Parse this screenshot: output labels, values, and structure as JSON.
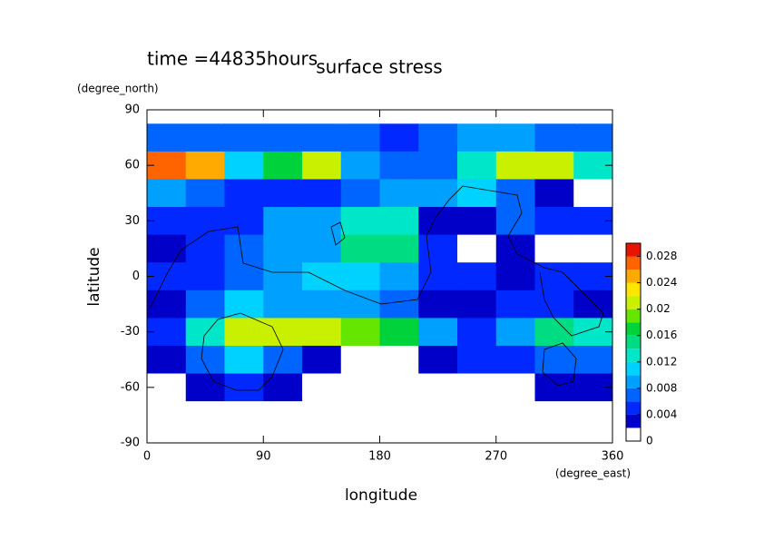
{
  "chart_data": {
    "type": "contour",
    "title": "surface stress",
    "subtitle": "time =44835hours",
    "xlabel": "longitude",
    "xunit": "(degree_east)",
    "ylabel": "latitude",
    "yunit": "(degree_north)",
    "xlim": [
      0,
      360
    ],
    "ylim": [
      -90,
      90
    ],
    "xticks": [
      0,
      90,
      180,
      270,
      360
    ],
    "yticks": [
      -90,
      -60,
      -30,
      0,
      30,
      60,
      90
    ],
    "x": [
      15,
      45,
      75,
      105,
      135,
      165,
      195,
      225,
      255,
      285,
      315,
      345
    ],
    "y": [
      75,
      60,
      45,
      30,
      15,
      0,
      -15,
      -30,
      -45,
      -60,
      -75
    ],
    "z": [
      [
        0.007,
        0.007,
        0.006,
        0.006,
        0.006,
        0.006,
        0.005,
        0.007,
        0.008,
        0.008,
        0.006,
        0.007
      ],
      [
        0.026,
        0.024,
        0.01,
        0.016,
        0.02,
        0.008,
        0.006,
        0.006,
        0.012,
        0.02,
        0.02,
        0.012
      ],
      [
        0.008,
        0.007,
        0.005,
        0.004,
        0.004,
        0.006,
        0.008,
        0.008,
        0.01,
        0.006,
        0.002,
        0
      ],
      [
        0.005,
        0.005,
        0.004,
        0.008,
        0.008,
        0.012,
        0.012,
        0.002,
        0.002,
        0.006,
        0.005,
        0.004
      ],
      [
        0.002,
        0.005,
        0.006,
        0.008,
        0.008,
        0.014,
        0.014,
        0.004,
        0,
        0.002,
        0,
        0
      ],
      [
        0.005,
        0.005,
        0.006,
        0.009,
        0.01,
        0.011,
        0.009,
        0.005,
        0.004,
        0.003,
        0.004,
        0.005
      ],
      [
        0.003,
        0.006,
        0.01,
        0.009,
        0.008,
        0.008,
        0.006,
        0.002,
        0.002,
        0.005,
        0.005,
        0.003
      ],
      [
        0.005,
        0.012,
        0.02,
        0.02,
        0.02,
        0.018,
        0.016,
        0.008,
        0.005,
        0.008,
        0.014,
        0.012
      ],
      [
        0.002,
        0.007,
        0.01,
        0.007,
        0.003,
        0.001,
        0.001,
        0.003,
        0.005,
        0.005,
        0.006,
        0.006
      ],
      [
        0,
        0.002,
        0.004,
        0.002,
        0,
        0.001,
        0.001,
        0,
        0.001,
        0.001,
        0.003,
        0.002
      ],
      [
        0,
        0,
        0,
        0,
        0,
        0,
        0,
        0,
        0,
        0,
        0,
        0
      ]
    ],
    "levels": [
      0,
      0.002,
      0.004,
      0.006,
      0.008,
      0.01,
      0.012,
      0.014,
      0.016,
      0.018,
      0.02,
      0.022,
      0.024,
      0.026,
      0.028,
      0.03
    ],
    "colors": [
      "#ffffff",
      "#0000c8",
      "#0028ff",
      "#0064ff",
      "#00a0ff",
      "#00d2ff",
      "#00e6c8",
      "#00dc82",
      "#00d23c",
      "#64e600",
      "#c8f000",
      "#ffe600",
      "#ffaa00",
      "#ff6400",
      "#e61400"
    ],
    "cticks": [
      0,
      0.004,
      0.008,
      0.012,
      0.016,
      0.02,
      0.024,
      0.028
    ]
  }
}
